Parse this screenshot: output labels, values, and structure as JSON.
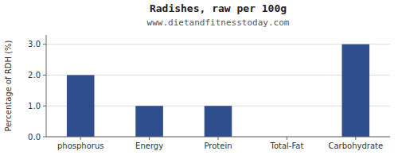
{
  "chart_data": {
    "type": "bar",
    "title": "Radishes, raw per 100g",
    "subtitle": "www.dietandfitnesstoday.com",
    "categories": [
      "phosphorus",
      "Energy",
      "Protein",
      "Total-Fat",
      "Carbohydrate"
    ],
    "values": [
      2.0,
      1.0,
      1.0,
      0.0,
      3.0
    ],
    "color": "#2e4e8e",
    "ylabel": "Percentage of RDH (%)",
    "ylim": [
      0,
      3.3
    ],
    "yticks": [
      {
        "value": 0.0,
        "label": "0.0"
      },
      {
        "value": 1.0,
        "label": "1.0"
      },
      {
        "value": 2.0,
        "label": "2.0"
      },
      {
        "value": 3.0,
        "label": "3.0"
      }
    ],
    "grid": true
  }
}
